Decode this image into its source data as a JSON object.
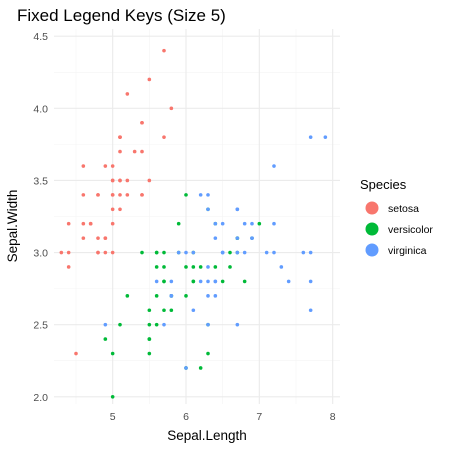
{
  "chart_data": {
    "type": "scatter",
    "title": "Fixed Legend Keys (Size 5)",
    "xlabel": "Sepal.Length",
    "ylabel": "Sepal.Width",
    "xlim": [
      4.2,
      8.1
    ],
    "ylim": [
      1.95,
      4.55
    ],
    "x_ticks": [
      5,
      6,
      7,
      8
    ],
    "y_ticks": [
      2.0,
      2.5,
      3.0,
      3.5,
      4.0,
      4.5
    ],
    "y_tick_labels": [
      "2.0",
      "2.5",
      "3.0",
      "3.5",
      "4.0",
      "4.5"
    ],
    "grid": true,
    "legend": {
      "title": "Species",
      "placement": "right",
      "entries": [
        "setosa",
        "versicolor",
        "virginica"
      ]
    },
    "colors": {
      "setosa": "#F8766D",
      "versicolor": "#00BA38",
      "virginica": "#619CFF",
      "grid_major": "#EBEBEB",
      "grid_minor": "#F4F4F4"
    },
    "series": [
      {
        "name": "setosa",
        "points": [
          [
            5.1,
            3.5
          ],
          [
            4.9,
            3.0
          ],
          [
            4.7,
            3.2
          ],
          [
            4.6,
            3.1
          ],
          [
            5.0,
            3.6
          ],
          [
            5.4,
            3.9
          ],
          [
            4.6,
            3.4
          ],
          [
            5.0,
            3.4
          ],
          [
            4.4,
            2.9
          ],
          [
            4.9,
            3.1
          ],
          [
            5.4,
            3.7
          ],
          [
            4.8,
            3.4
          ],
          [
            4.8,
            3.0
          ],
          [
            4.3,
            3.0
          ],
          [
            5.8,
            4.0
          ],
          [
            5.7,
            4.4
          ],
          [
            5.4,
            3.9
          ],
          [
            5.1,
            3.5
          ],
          [
            5.7,
            3.8
          ],
          [
            5.1,
            3.8
          ],
          [
            5.4,
            3.4
          ],
          [
            5.1,
            3.7
          ],
          [
            4.6,
            3.6
          ],
          [
            5.1,
            3.3
          ],
          [
            4.8,
            3.4
          ],
          [
            5.0,
            3.0
          ],
          [
            5.0,
            3.4
          ],
          [
            5.2,
            3.5
          ],
          [
            5.2,
            3.4
          ],
          [
            4.7,
            3.2
          ],
          [
            4.8,
            3.1
          ],
          [
            5.4,
            3.4
          ],
          [
            5.2,
            4.1
          ],
          [
            5.5,
            4.2
          ],
          [
            4.9,
            3.1
          ],
          [
            5.0,
            3.2
          ],
          [
            5.5,
            3.5
          ],
          [
            4.9,
            3.6
          ],
          [
            4.4,
            3.0
          ],
          [
            5.1,
            3.4
          ],
          [
            5.0,
            3.5
          ],
          [
            4.5,
            2.3
          ],
          [
            4.4,
            3.2
          ],
          [
            5.0,
            3.5
          ],
          [
            5.1,
            3.8
          ],
          [
            4.8,
            3.0
          ],
          [
            5.1,
            3.8
          ],
          [
            4.6,
            3.2
          ],
          [
            5.3,
            3.7
          ],
          [
            5.0,
            3.3
          ]
        ]
      },
      {
        "name": "versicolor",
        "points": [
          [
            7.0,
            3.2
          ],
          [
            6.4,
            3.2
          ],
          [
            6.9,
            3.1
          ],
          [
            5.5,
            2.3
          ],
          [
            6.5,
            2.8
          ],
          [
            5.7,
            2.8
          ],
          [
            6.3,
            3.3
          ],
          [
            4.9,
            2.4
          ],
          [
            6.6,
            2.9
          ],
          [
            5.2,
            2.7
          ],
          [
            5.0,
            2.0
          ],
          [
            5.9,
            3.0
          ],
          [
            6.0,
            2.2
          ],
          [
            6.1,
            2.9
          ],
          [
            5.6,
            2.9
          ],
          [
            6.7,
            3.1
          ],
          [
            5.6,
            3.0
          ],
          [
            5.8,
            2.7
          ],
          [
            6.2,
            2.2
          ],
          [
            5.6,
            2.5
          ],
          [
            5.9,
            3.2
          ],
          [
            6.1,
            2.8
          ],
          [
            6.3,
            2.5
          ],
          [
            6.1,
            2.8
          ],
          [
            6.4,
            2.9
          ],
          [
            6.6,
            3.0
          ],
          [
            6.8,
            2.8
          ],
          [
            6.7,
            3.0
          ],
          [
            6.0,
            2.9
          ],
          [
            5.7,
            2.6
          ],
          [
            5.5,
            2.4
          ],
          [
            5.5,
            2.4
          ],
          [
            5.8,
            2.7
          ],
          [
            6.0,
            2.7
          ],
          [
            5.4,
            3.0
          ],
          [
            6.0,
            3.4
          ],
          [
            6.7,
            3.1
          ],
          [
            6.3,
            2.3
          ],
          [
            5.6,
            3.0
          ],
          [
            5.5,
            2.5
          ],
          [
            5.5,
            2.6
          ],
          [
            6.1,
            3.0
          ],
          [
            5.8,
            2.6
          ],
          [
            5.0,
            2.3
          ],
          [
            5.6,
            2.7
          ],
          [
            5.7,
            3.0
          ],
          [
            5.7,
            2.9
          ],
          [
            6.2,
            2.9
          ],
          [
            5.1,
            2.5
          ],
          [
            5.7,
            2.8
          ]
        ]
      },
      {
        "name": "virginica",
        "points": [
          [
            6.3,
            3.3
          ],
          [
            5.8,
            2.7
          ],
          [
            7.1,
            3.0
          ],
          [
            6.3,
            2.9
          ],
          [
            6.5,
            3.0
          ],
          [
            7.6,
            3.0
          ],
          [
            4.9,
            2.5
          ],
          [
            7.3,
            2.9
          ],
          [
            6.7,
            2.5
          ],
          [
            7.2,
            3.6
          ],
          [
            6.5,
            3.2
          ],
          [
            6.4,
            2.7
          ],
          [
            6.8,
            3.0
          ],
          [
            5.7,
            2.5
          ],
          [
            5.8,
            2.8
          ],
          [
            6.4,
            3.2
          ],
          [
            6.5,
            3.0
          ],
          [
            7.7,
            3.8
          ],
          [
            7.7,
            2.6
          ],
          [
            6.0,
            2.2
          ],
          [
            6.9,
            3.2
          ],
          [
            5.6,
            2.8
          ],
          [
            7.7,
            2.8
          ],
          [
            6.3,
            2.7
          ],
          [
            6.7,
            3.3
          ],
          [
            7.2,
            3.2
          ],
          [
            6.2,
            2.8
          ],
          [
            6.1,
            3.0
          ],
          [
            6.4,
            2.8
          ],
          [
            7.2,
            3.0
          ],
          [
            7.4,
            2.8
          ],
          [
            7.9,
            3.8
          ],
          [
            6.4,
            2.8
          ],
          [
            6.3,
            2.8
          ],
          [
            6.1,
            2.6
          ],
          [
            7.7,
            3.0
          ],
          [
            6.3,
            3.4
          ],
          [
            6.4,
            3.1
          ],
          [
            6.0,
            3.0
          ],
          [
            6.9,
            3.1
          ],
          [
            6.7,
            3.1
          ],
          [
            6.9,
            3.1
          ],
          [
            5.8,
            2.7
          ],
          [
            6.8,
            3.2
          ],
          [
            6.7,
            3.3
          ],
          [
            6.7,
            3.0
          ],
          [
            6.3,
            2.5
          ],
          [
            6.5,
            3.0
          ],
          [
            6.2,
            3.4
          ],
          [
            5.9,
            3.0
          ]
        ]
      }
    ]
  }
}
